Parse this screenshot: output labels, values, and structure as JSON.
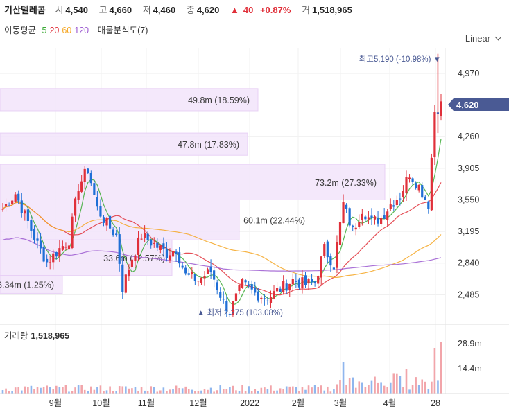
{
  "header": {
    "name": "기산텔레콤",
    "open_label": "시",
    "open": "4,540",
    "high_label": "고",
    "high": "4,660",
    "low_label": "저",
    "low": "4,460",
    "close_label": "종",
    "close": "4,620",
    "change_arrow": "▲",
    "change": "40",
    "change_pct": "+0.87%",
    "volume_label": "거",
    "volume": "1,518,965"
  },
  "indicators": {
    "ma_label": "이동평균",
    "ma_periods": [
      "5",
      "20",
      "60",
      "120"
    ],
    "ma_colors": [
      "#3aaa35",
      "#e0303a",
      "#f5a623",
      "#9b59d0"
    ],
    "vp_label": "매물분석도(7)"
  },
  "scale_selector": {
    "label": "Linear",
    "icon": "chevron-down-icon"
  },
  "volume_panel": {
    "label": "거래량",
    "value": "1,518,965"
  },
  "chart_data": {
    "type": "candlestick",
    "y_ticks": [
      "4,970",
      "4,260",
      "3,905",
      "3,550",
      "3,195",
      "2,840",
      "2,485"
    ],
    "y_tick_values": [
      4970,
      4260,
      3905,
      3550,
      3195,
      2840,
      2485
    ],
    "ylim": [
      2200,
      5250
    ],
    "x_ticks": [
      "9월",
      "10월",
      "11월",
      "12월",
      "2022",
      "2월",
      "3월",
      "4월",
      "28"
    ],
    "current_price_label": "4,620",
    "current_price": 4620,
    "high_marker": {
      "label": "최고",
      "value_text": "5,190 (-10.98%)",
      "arrow": "▼",
      "value": 5190
    },
    "low_marker": {
      "label": "최저",
      "value_text": "2,275 (103.08%)",
      "arrow": "▲",
      "value": 2275
    },
    "volume_profile": [
      {
        "label": "49.8m (18.59%)",
        "low": 4550,
        "high": 4800
      },
      {
        "label": "47.8m (17.83%)",
        "low": 4050,
        "high": 4300
      },
      {
        "label": "73.2m (27.33%)",
        "low": 3550,
        "high": 3950
      },
      {
        "label": "60.1m (22.44%)",
        "low": 3100,
        "high": 3550
      },
      {
        "label": "33.6m (12.57%)",
        "low": 2700,
        "high": 3100
      },
      {
        "label": "3.34m (1.25%)",
        "low": 2500,
        "high": 2700
      }
    ],
    "volume_ticks": [
      "28.9m",
      "14.4m"
    ],
    "volume_tick_values": [
      28.9,
      14.4
    ],
    "colors": {
      "up": "#e0303a",
      "down": "#1f6fd6",
      "accent": "#4a5a94"
    }
  }
}
